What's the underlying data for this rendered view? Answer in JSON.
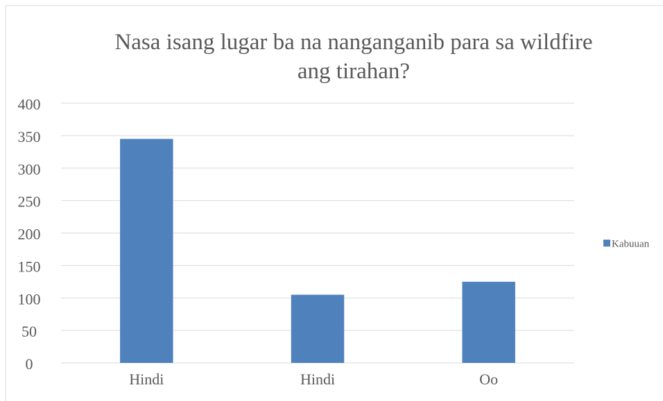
{
  "chart_data": {
    "type": "bar",
    "title": "Nasa isang lugar ba na nanganganib para sa wildfire ang tirahan?",
    "categories": [
      "Hindi",
      "Hindi",
      "Oo"
    ],
    "series": [
      {
        "name": "Kabuuan",
        "color": "#4f81bd",
        "values": [
          345,
          105,
          125
        ]
      }
    ],
    "ylim": [
      0,
      400
    ],
    "yticks": [
      0,
      50,
      100,
      150,
      200,
      250,
      300,
      350,
      400
    ],
    "grid": true,
    "legend": "right"
  }
}
